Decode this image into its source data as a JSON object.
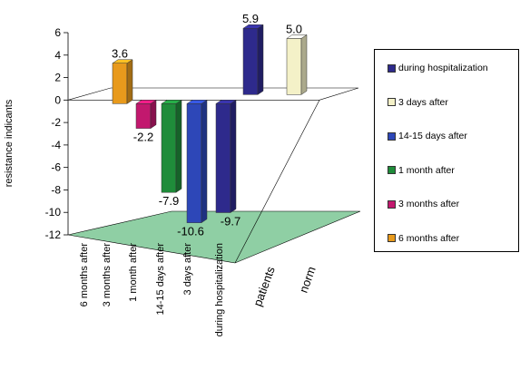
{
  "chart_data": {
    "type": "bar",
    "ylabel": "resistance indicants",
    "yticks": [
      6,
      4,
      2,
      0,
      -2,
      -4,
      -6,
      -8,
      -10,
      -12
    ],
    "ylim": [
      -12,
      6
    ],
    "x_categories": [
      "6 months after",
      "3 months after",
      "1 month after",
      "14-15 days after",
      "3 days after",
      "during hospitalization"
    ],
    "groups": [
      "patients",
      "norm"
    ],
    "series": [
      {
        "name": "during hospitalization",
        "color": "#2e2a8c",
        "patients": -9.7,
        "norm": 5.9
      },
      {
        "name": "3 days after",
        "color": "#f4f1c8",
        "patients": null,
        "norm": 5.0
      },
      {
        "name": "14-15 days after",
        "color": "#2d47b8",
        "patients": -10.6,
        "norm": null
      },
      {
        "name": "1 month after",
        "color": "#1f8c3a",
        "patients": -7.9,
        "norm": null
      },
      {
        "name": "3 months after",
        "color": "#c2186e",
        "patients": -2.2,
        "norm": null
      },
      {
        "name": "6 months after",
        "color": "#e89a1c",
        "patients": 3.6,
        "norm": null
      }
    ],
    "data_labels": [
      "5.9",
      "5.0",
      "3.6",
      "-2.2",
      "-7.9",
      "-10.6",
      "-9.7"
    ],
    "legend_position": "right",
    "colors": {
      "floor": "#8fcfa4",
      "tick_text": "#000000"
    }
  }
}
